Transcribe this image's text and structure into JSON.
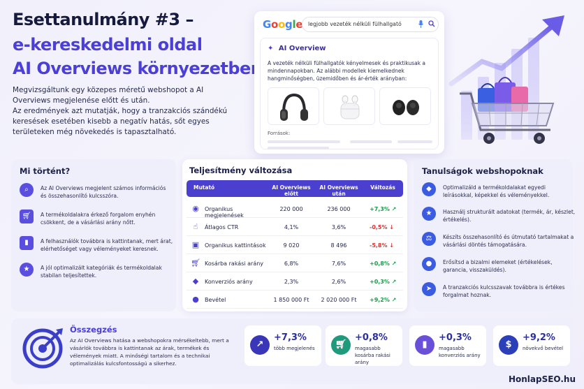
{
  "header": {
    "title_line1": "Esettanulmány #3 –",
    "title_line2": "e-kereskedelmi oldal",
    "title_line3": "AI Overviews környezetben",
    "intro_p1": "Megvizsgáltunk egy közepes méretű webshopot a AI Overviews megjelenése előtt és után.",
    "intro_p2": "Az eredmények azt mutatják, hogy a tranzakciós szándékú keresések esetében kisebb a negatív hatás, sőt egyes területeken még növekedés is tapasztalható."
  },
  "google_card": {
    "logo": [
      "G",
      "o",
      "o",
      "g",
      "l",
      "e"
    ],
    "query": "legjobb vezeték nélküli fülhallgató",
    "ai_overview_label": "AI Overview",
    "ai_text": "A vezeték nélküli fülhallgatók kényelmesek és praktikusak a mindennapokban. Az alábbi modellek kiemelkednek hangminőségben, üzemidőben és ár-érték arányban:",
    "sources_label": "Források:"
  },
  "what_happened": {
    "title": "Mi történt?",
    "items": [
      {
        "icon": "search-icon",
        "text": "Az AI Overviews megjelent számos információs és összehasonlító kulcsszóra."
      },
      {
        "icon": "cart-icon",
        "text": "A termékoldalakra érkező forgalom enyhén csökkent, de a vásárlási arány nőtt."
      },
      {
        "icon": "bar-chart-icon",
        "text": "A felhasználók továbbra is kattintanak, mert árat, elérhetőséget vagy véleményeket keresnek."
      },
      {
        "icon": "star-icon",
        "text": "A jól optimalizált kategóriák és termékoldalak stabilan teljesítettek."
      }
    ]
  },
  "performance": {
    "title": "Teljesítmény változása",
    "headers": {
      "metric": "Mutató",
      "before": "AI Overviews előtt",
      "after": "AI Overviews után",
      "change": "Változás"
    },
    "rows": [
      {
        "icon": "eye-icon",
        "metric": "Organikus megjelenések",
        "before": "220 000",
        "after": "236 000",
        "change": "+7,3%",
        "dir": "up"
      },
      {
        "icon": "cursor-click-icon",
        "metric": "Átlagos CTR",
        "before": "4,1%",
        "after": "3,6%",
        "change": "-0,5%",
        "dir": "down"
      },
      {
        "icon": "shopping-bag-icon",
        "metric": "Organikus kattintások",
        "before": "9 020",
        "after": "8 496",
        "change": "-5,8%",
        "dir": "down"
      },
      {
        "icon": "cart-icon",
        "metric": "Kosárba rakási arány",
        "before": "6,8%",
        "after": "7,6%",
        "change": "+0,8%",
        "dir": "up"
      },
      {
        "icon": "diamond-icon",
        "metric": "Konverziós arány",
        "before": "2,3%",
        "after": "2,6%",
        "change": "+0,3%",
        "dir": "up"
      },
      {
        "icon": "coin-icon",
        "metric": "Bevétel",
        "before": "1 850 000 Ft",
        "after": "2 020 000 Ft",
        "change": "+9,2%",
        "dir": "up"
      }
    ]
  },
  "lessons": {
    "title": "Tanulságok webshopoknak",
    "items": [
      {
        "icon": "tag-icon",
        "text": "Optimalizáld a termékoldalakat egyedi leírásokkal, képekkel és véleményekkel."
      },
      {
        "icon": "star-badge-icon",
        "text": "Használj strukturált adatokat (termék, ár, készlet, értékelés)."
      },
      {
        "icon": "scale-icon",
        "text": "Készíts összehasonlító és útmutató tartalmakat a vásárlási döntés támogatására."
      },
      {
        "icon": "chat-icon",
        "text": "Erősítsd a bizalmi elemeket (értékelések, garancia, visszaküldés)."
      },
      {
        "icon": "cursor-icon",
        "text": "A tranzakciós kulcsszavak továbbra is értékes forgalmat hoznak."
      }
    ]
  },
  "summary": {
    "title": "Összegzés",
    "text": "Az AI Overviews hatása a webshopokra mérsékeltebb, mert a vásárlók továbbra is kattintanak az árak, termékek és vélemények miatt. A minőségi tartalom és a technikai optimalizálás kulcsfontosságú a sikerhez.",
    "kpis": [
      {
        "icon": "trend-up-icon",
        "value": "+7,3%",
        "label": "több megjelenés",
        "color": "#3a36b8"
      },
      {
        "icon": "cart-icon",
        "value": "+0,8%",
        "label": "magasabb kosárba rakási arány",
        "color": "#1f9a7a"
      },
      {
        "icon": "bar-chart-icon",
        "value": "+0,3%",
        "label": "magasabb konverziós arány",
        "color": "#6a4fd8"
      },
      {
        "icon": "dollar-icon",
        "value": "+9,2%",
        "label": "növekvő bevétel",
        "color": "#2b3fb8"
      }
    ]
  },
  "brand": "HonlapSEO.hu"
}
